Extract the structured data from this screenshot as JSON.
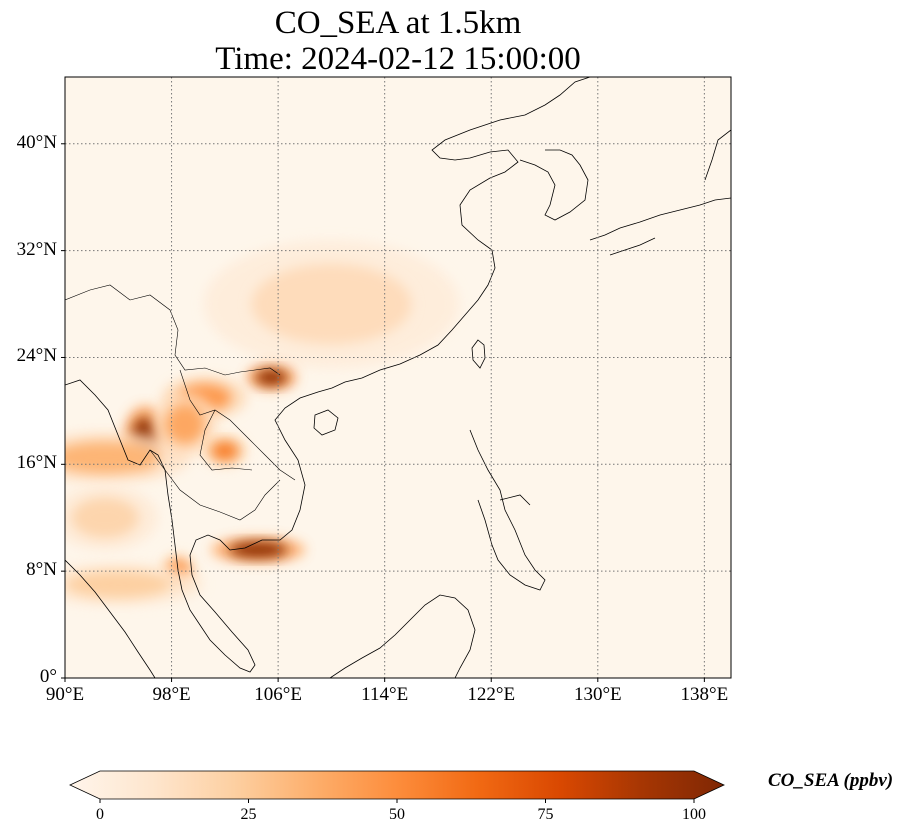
{
  "title": {
    "line1": "CO_SEA at 1.5km",
    "line2": "Time: 2024-02-12 15:00:00"
  },
  "map": {
    "lon_range": [
      90,
      140
    ],
    "lat_range": [
      0,
      45
    ],
    "background_color": "#fef6eb",
    "grid": "dotted",
    "xticks": [
      {
        "value": 90,
        "label": "90°E"
      },
      {
        "value": 98,
        "label": "98°E"
      },
      {
        "value": 106,
        "label": "106°E"
      },
      {
        "value": 114,
        "label": "114°E"
      },
      {
        "value": 122,
        "label": "122°E"
      },
      {
        "value": 130,
        "label": "130°E"
      },
      {
        "value": 138,
        "label": "138°E"
      }
    ],
    "yticks": [
      {
        "value": 0,
        "label": "0°"
      },
      {
        "value": 8,
        "label": "8°N"
      },
      {
        "value": 16,
        "label": "16°N"
      },
      {
        "value": 24,
        "label": "24°N"
      },
      {
        "value": 32,
        "label": "32°N"
      },
      {
        "value": 40,
        "label": "40°N"
      }
    ],
    "plumes": [
      {
        "name": "south-china-diffuse",
        "lon": 110,
        "lat": 28,
        "rlon": 6,
        "rlat": 3,
        "level": 18
      },
      {
        "name": "vietnam-hanoi",
        "lon": 105.5,
        "lat": 22.5,
        "rlon": 1.2,
        "rlat": 0.6,
        "level": 95
      },
      {
        "name": "laos-north",
        "lon": 100.5,
        "lat": 21,
        "rlon": 2,
        "rlat": 1,
        "level": 45
      },
      {
        "name": "myanmar-east",
        "lon": 96,
        "lat": 18,
        "rlon": 1,
        "rlat": 1.5,
        "level": 95
      },
      {
        "name": "myanmar-band",
        "lon": 93,
        "lat": 16.5,
        "rlon": 4,
        "rlat": 1.2,
        "level": 35
      },
      {
        "name": "thailand-north",
        "lon": 99,
        "lat": 19,
        "rlon": 1.5,
        "rlat": 1.5,
        "level": 40
      },
      {
        "name": "laos-central",
        "lon": 102,
        "lat": 17,
        "rlon": 1,
        "rlat": 0.7,
        "level": 55
      },
      {
        "name": "cambodia",
        "lon": 104.5,
        "lat": 9.6,
        "rlon": 2.2,
        "rlat": 0.6,
        "level": 95
      },
      {
        "name": "thailand-south",
        "lon": 98.5,
        "lat": 8,
        "rlon": 0.8,
        "rlat": 0.8,
        "level": 50
      },
      {
        "name": "andaman-band",
        "lon": 94,
        "lat": 7,
        "rlon": 4,
        "rlat": 1,
        "level": 25
      },
      {
        "name": "myanmar-west",
        "lon": 93,
        "lat": 12,
        "rlon": 2.5,
        "rlat": 1.5,
        "level": 22
      }
    ]
  },
  "colorbar": {
    "label": "CO_SEA (ppbv)",
    "min": 0,
    "max": 100,
    "extend": "both",
    "colormap": [
      "#fff5eb",
      "#fee6ce",
      "#fdd0a2",
      "#fdae6b",
      "#fd8d3c",
      "#f16913",
      "#d94801",
      "#a63603",
      "#7f2704"
    ],
    "ticks": [
      {
        "value": 0,
        "label": "0"
      },
      {
        "value": 25,
        "label": "25"
      },
      {
        "value": 50,
        "label": "50"
      },
      {
        "value": 75,
        "label": "75"
      },
      {
        "value": 100,
        "label": "100"
      }
    ]
  }
}
